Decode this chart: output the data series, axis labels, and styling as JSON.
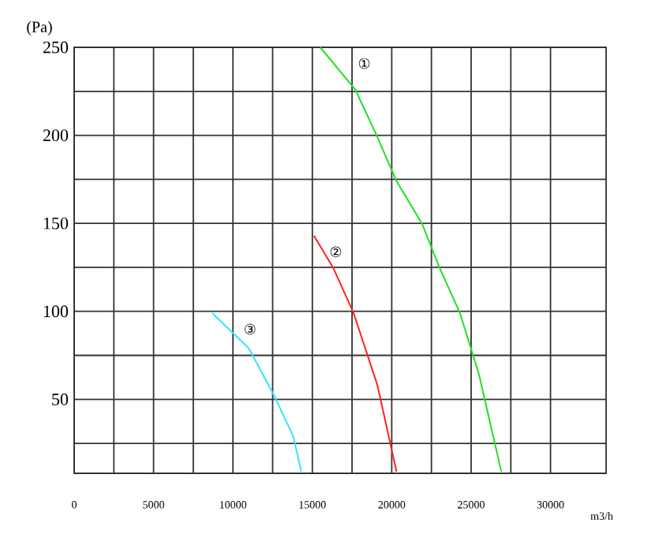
{
  "chart_data": {
    "type": "line",
    "xlabel": "m3/h",
    "ylabel": "(Pa)",
    "xlim": [
      0,
      33500
    ],
    "ylim": [
      8,
      250
    ],
    "xticks": [
      0,
      {
        "value": 2500,
        "label": null
      },
      5000,
      {
        "value": 7500,
        "label": null
      },
      10000,
      {
        "value": 12500,
        "label": null
      },
      15000,
      {
        "value": 17500,
        "label": null
      },
      20000,
      {
        "value": 22500,
        "label": null
      },
      25000,
      {
        "value": 27500,
        "label": null
      },
      30000
    ],
    "yticks": [
      {
        "value": 25,
        "label": null
      },
      50,
      {
        "value": 75,
        "label": null
      },
      100,
      {
        "value": 125,
        "label": null
      },
      150,
      {
        "value": 175,
        "label": null
      },
      200,
      {
        "value": 225,
        "label": null
      },
      250
    ],
    "grid": true,
    "marker": "none",
    "line_style": "solid",
    "series": [
      {
        "name": "①",
        "color": "#22e022",
        "x": [
          15500,
          17700,
          19000,
          20300,
          21900,
          23000,
          24300,
          25500,
          26900
        ],
        "values": [
          250,
          226,
          201,
          174,
          150,
          125,
          99,
          64,
          9
        ]
      },
      {
        "name": "②",
        "color": "#ff2020",
        "x": [
          15100,
          16300,
          17600,
          19100,
          20300
        ],
        "values": [
          143,
          125,
          99,
          58,
          9
        ]
      },
      {
        "name": "③",
        "color": "#30e8f8",
        "x": [
          8700,
          11000,
          12600,
          13800,
          14300
        ],
        "values": [
          99,
          79,
          52,
          29,
          9
        ]
      }
    ]
  }
}
